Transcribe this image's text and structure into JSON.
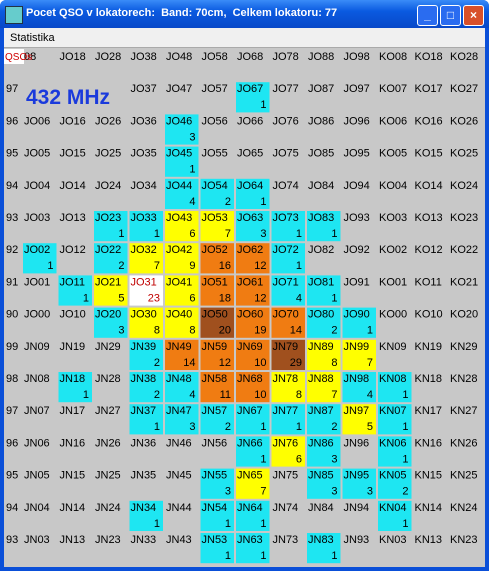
{
  "window": {
    "title": "Pocet QSO v lokatorech:  Band: 70cm,  Celkem lokatoru: 77",
    "menu": [
      "Statistika"
    ]
  },
  "grid": {
    "corner_label": "QSOs",
    "band_label": "432 MHz",
    "rows": [
      {
        "labels": [
          null,
          "08",
          "JO18",
          "JO28",
          "JO38",
          "JO48",
          "JO58",
          "JO68",
          "JO78",
          "JO88",
          "JO98",
          "KO08",
          "KO18",
          "KO28"
        ],
        "counts": [
          null,
          null,
          null,
          null,
          null,
          null,
          null,
          null,
          null,
          null,
          null,
          null,
          null,
          null
        ],
        "colors": [
          null,
          null,
          null,
          null,
          null,
          null,
          null,
          null,
          null,
          null,
          null,
          null,
          null,
          null
        ]
      },
      {
        "labels": [
          "97",
          null,
          null,
          null,
          "JO37",
          "JO47",
          "JO57",
          "JO67",
          "JO77",
          "JO87",
          "JO97",
          "KO07",
          "KO17",
          "KO27"
        ],
        "counts": [
          null,
          null,
          null,
          null,
          null,
          null,
          null,
          1,
          null,
          null,
          null,
          null,
          null,
          null
        ],
        "colors": [
          null,
          null,
          null,
          null,
          null,
          null,
          null,
          "#1ee6f2",
          null,
          null,
          null,
          null,
          null,
          null
        ]
      },
      {
        "labels": [
          "96",
          "JO06",
          "JO16",
          "JO26",
          "JO36",
          "JO46",
          "JO56",
          "JO66",
          "JO76",
          "JO86",
          "JO96",
          "KO06",
          "KO16",
          "KO26"
        ],
        "counts": [
          null,
          null,
          null,
          null,
          null,
          3,
          null,
          null,
          null,
          null,
          null,
          null,
          null,
          null
        ],
        "colors": [
          null,
          null,
          null,
          null,
          null,
          "#1ee6f2",
          null,
          null,
          null,
          null,
          null,
          null,
          null,
          null
        ]
      },
      {
        "labels": [
          "95",
          "JO05",
          "JO15",
          "JO25",
          "JO35",
          "JO45",
          "JO55",
          "JO65",
          "JO75",
          "JO85",
          "JO95",
          "KO05",
          "KO15",
          "KO25"
        ],
        "counts": [
          null,
          null,
          null,
          null,
          null,
          1,
          null,
          null,
          null,
          null,
          null,
          null,
          null,
          null
        ],
        "colors": [
          null,
          null,
          null,
          null,
          null,
          "#1ee6f2",
          null,
          null,
          null,
          null,
          null,
          null,
          null,
          null
        ]
      },
      {
        "labels": [
          "94",
          "JO04",
          "JO14",
          "JO24",
          "JO34",
          "JO44",
          "JO54",
          "JO64",
          "JO74",
          "JO84",
          "JO94",
          "KO04",
          "KO14",
          "KO24"
        ],
        "counts": [
          null,
          null,
          null,
          null,
          null,
          4,
          2,
          1,
          null,
          null,
          null,
          null,
          null,
          null
        ],
        "colors": [
          null,
          null,
          null,
          null,
          null,
          "#1ee6f2",
          "#1ee6f2",
          "#1ee6f2",
          null,
          null,
          null,
          null,
          null,
          null
        ]
      },
      {
        "labels": [
          "93",
          "JO03",
          "JO13",
          "JO23",
          "JO33",
          "JO43",
          "JO53",
          "JO63",
          "JO73",
          "JO83",
          "JO93",
          "KO03",
          "KO13",
          "KO23"
        ],
        "counts": [
          null,
          null,
          null,
          1,
          1,
          6,
          7,
          3,
          1,
          1,
          null,
          null,
          null,
          null
        ],
        "colors": [
          null,
          null,
          null,
          "#1ee6f2",
          "#1ee6f2",
          "#ffff00",
          "#ffff00",
          "#1ee6f2",
          "#1ee6f2",
          "#1ee6f2",
          null,
          null,
          null,
          null
        ]
      },
      {
        "labels": [
          "92",
          "JO02",
          "JO12",
          "JO22",
          "JO32",
          "JO42",
          "JO52",
          "JO62",
          "JO72",
          "JO82",
          "JO92",
          "KO02",
          "KO12",
          "KO22"
        ],
        "counts": [
          null,
          1,
          null,
          2,
          7,
          9,
          16,
          12,
          1,
          null,
          null,
          null,
          null,
          null
        ],
        "colors": [
          null,
          "#1ee6f2",
          null,
          "#1ee6f2",
          "#ffff00",
          "#ffff00",
          "#f07c12",
          "#f07c12",
          "#1ee6f2",
          null,
          null,
          null,
          null,
          null
        ]
      },
      {
        "labels": [
          "91",
          "JO01",
          "JO11",
          "JO21",
          "JO31",
          "JO41",
          "JO51",
          "JO61",
          "JO71",
          "JO81",
          "JO91",
          "KO01",
          "KO11",
          "KO21"
        ],
        "counts": [
          null,
          null,
          1,
          5,
          23,
          6,
          18,
          12,
          4,
          1,
          null,
          null,
          null,
          null
        ],
        "colors": [
          null,
          null,
          "#1ee6f2",
          "#ffff00",
          "#ffffff",
          "#ffff00",
          "#f07c12",
          "#f07c12",
          "#1ee6f2",
          "#1ee6f2",
          null,
          null,
          null,
          null
        ]
      },
      {
        "labels": [
          "90",
          "JO00",
          "JO10",
          "JO20",
          "JO30",
          "JO40",
          "JO50",
          "JO60",
          "JO70",
          "JO80",
          "JO90",
          "KO00",
          "KO10",
          "KO20"
        ],
        "counts": [
          null,
          null,
          null,
          3,
          8,
          8,
          20,
          19,
          14,
          2,
          1,
          null,
          null,
          null
        ],
        "colors": [
          null,
          null,
          null,
          "#1ee6f2",
          "#ffff00",
          "#ffff00",
          "#a0501e",
          "#f07c12",
          "#f07c12",
          "#1ee6f2",
          "#1ee6f2",
          null,
          null,
          null
        ]
      },
      {
        "labels": [
          "99",
          "JN09",
          "JN19",
          "JN29",
          "JN39",
          "JN49",
          "JN59",
          "JN69",
          "JN79",
          "JN89",
          "JN99",
          "KN09",
          "KN19",
          "KN29"
        ],
        "counts": [
          null,
          null,
          null,
          null,
          2,
          14,
          12,
          10,
          29,
          8,
          7,
          null,
          null,
          null
        ],
        "colors": [
          null,
          null,
          null,
          null,
          "#1ee6f2",
          "#f07c12",
          "#f07c12",
          "#f07c12",
          "#a0501e",
          "#ffff00",
          "#ffff00",
          null,
          null,
          null
        ]
      },
      {
        "labels": [
          "98",
          "JN08",
          "JN18",
          "JN28",
          "JN38",
          "JN48",
          "JN58",
          "JN68",
          "JN78",
          "JN88",
          "JN98",
          "KN08",
          "KN18",
          "KN28"
        ],
        "counts": [
          null,
          null,
          1,
          null,
          2,
          4,
          11,
          10,
          8,
          7,
          4,
          1,
          null,
          null
        ],
        "colors": [
          null,
          null,
          "#1ee6f2",
          null,
          "#1ee6f2",
          "#1ee6f2",
          "#f07c12",
          "#f07c12",
          "#ffff00",
          "#ffff00",
          "#1ee6f2",
          "#1ee6f2",
          null,
          null
        ]
      },
      {
        "labels": [
          "97",
          "JN07",
          "JN17",
          "JN27",
          "JN37",
          "JN47",
          "JN57",
          "JN67",
          "JN77",
          "JN87",
          "JN97",
          "KN07",
          "KN17",
          "KN27"
        ],
        "counts": [
          null,
          null,
          null,
          null,
          1,
          3,
          2,
          1,
          1,
          2,
          5,
          1,
          null,
          null
        ],
        "colors": [
          null,
          null,
          null,
          null,
          "#1ee6f2",
          "#1ee6f2",
          "#1ee6f2",
          "#1ee6f2",
          "#1ee6f2",
          "#1ee6f2",
          "#ffff00",
          "#1ee6f2",
          null,
          null
        ]
      },
      {
        "labels": [
          "96",
          "JN06",
          "JN16",
          "JN26",
          "JN36",
          "JN46",
          "JN56",
          "JN66",
          "JN76",
          "JN86",
          "JN96",
          "KN06",
          "KN16",
          "KN26"
        ],
        "counts": [
          null,
          null,
          null,
          null,
          null,
          null,
          null,
          1,
          6,
          3,
          null,
          1,
          null,
          null
        ],
        "colors": [
          null,
          null,
          null,
          null,
          null,
          null,
          null,
          "#1ee6f2",
          "#ffff00",
          "#1ee6f2",
          null,
          "#1ee6f2",
          null,
          null
        ]
      },
      {
        "labels": [
          "95",
          "JN05",
          "JN15",
          "JN25",
          "JN35",
          "JN45",
          "JN55",
          "JN65",
          "JN75",
          "JN85",
          "JN95",
          "KN05",
          "KN15",
          "KN25"
        ],
        "counts": [
          null,
          null,
          null,
          null,
          null,
          null,
          3,
          7,
          null,
          3,
          3,
          2,
          null,
          null
        ],
        "colors": [
          null,
          null,
          null,
          null,
          null,
          null,
          "#1ee6f2",
          "#ffff00",
          null,
          "#1ee6f2",
          "#1ee6f2",
          "#1ee6f2",
          null,
          null
        ]
      },
      {
        "labels": [
          "94",
          "JN04",
          "JN14",
          "JN24",
          "JN34",
          "JN44",
          "JN54",
          "JN64",
          "JN74",
          "JN84",
          "JN94",
          "KN04",
          "KN14",
          "KN24"
        ],
        "counts": [
          null,
          null,
          null,
          null,
          1,
          null,
          1,
          1,
          null,
          null,
          null,
          1,
          null,
          null
        ],
        "colors": [
          null,
          null,
          null,
          null,
          "#1ee6f2",
          null,
          "#1ee6f2",
          "#1ee6f2",
          null,
          null,
          null,
          "#1ee6f2",
          null,
          null
        ]
      },
      {
        "labels": [
          "93",
          "JN03",
          "JN13",
          "JN23",
          "JN33",
          "JN43",
          "JN53",
          "JN63",
          "JN73",
          "JN83",
          "JN93",
          "KN03",
          "KN13",
          "KN23"
        ],
        "counts": [
          null,
          null,
          null,
          null,
          null,
          null,
          1,
          1,
          null,
          1,
          null,
          null,
          null,
          null
        ],
        "colors": [
          null,
          null,
          null,
          null,
          null,
          null,
          "#1ee6f2",
          "#1ee6f2",
          null,
          "#1ee6f2",
          null,
          null,
          null,
          null
        ]
      }
    ]
  }
}
